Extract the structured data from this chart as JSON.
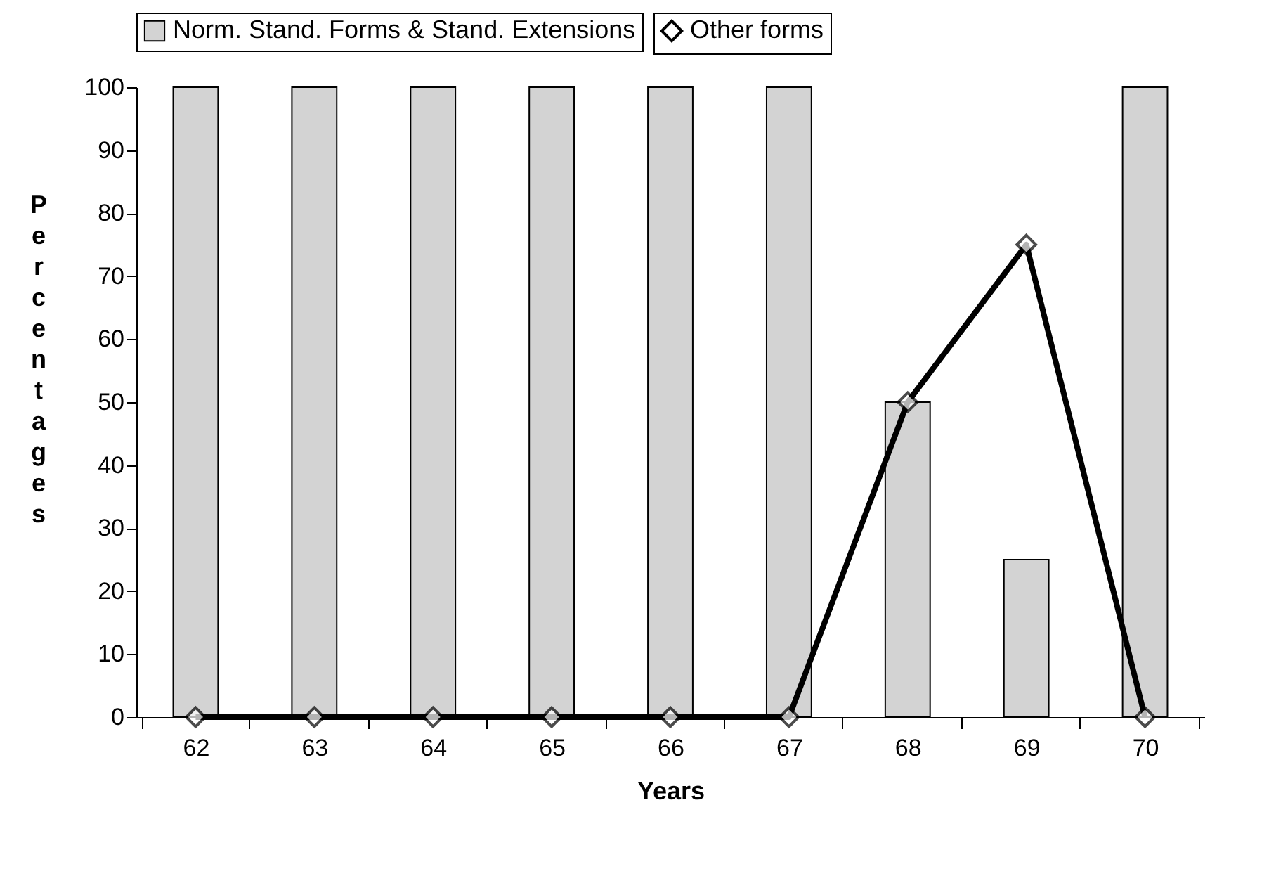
{
  "chart_data": {
    "type": "bar",
    "xlabel": "Years",
    "ylabel": "Percentages",
    "categories": [
      "62",
      "63",
      "64",
      "65",
      "66",
      "67",
      "68",
      "69",
      "70"
    ],
    "series": [
      {
        "name": "Norm. Stand. Forms & Stand. Extensions",
        "color": "#d3d3d3",
        "values": [
          100,
          100,
          100,
          100,
          100,
          100,
          50,
          25,
          100
        ]
      },
      {
        "name": "Other forms",
        "type": "line",
        "color": "#000000",
        "marker": "diamond",
        "values": [
          0,
          0,
          0,
          0,
          0,
          0,
          50,
          75,
          0
        ]
      }
    ],
    "ylim": [
      0,
      100
    ],
    "yticks": [
      0,
      10,
      20,
      30,
      40,
      50,
      60,
      70,
      80,
      90,
      100
    ],
    "grid": false,
    "legend": "top"
  }
}
